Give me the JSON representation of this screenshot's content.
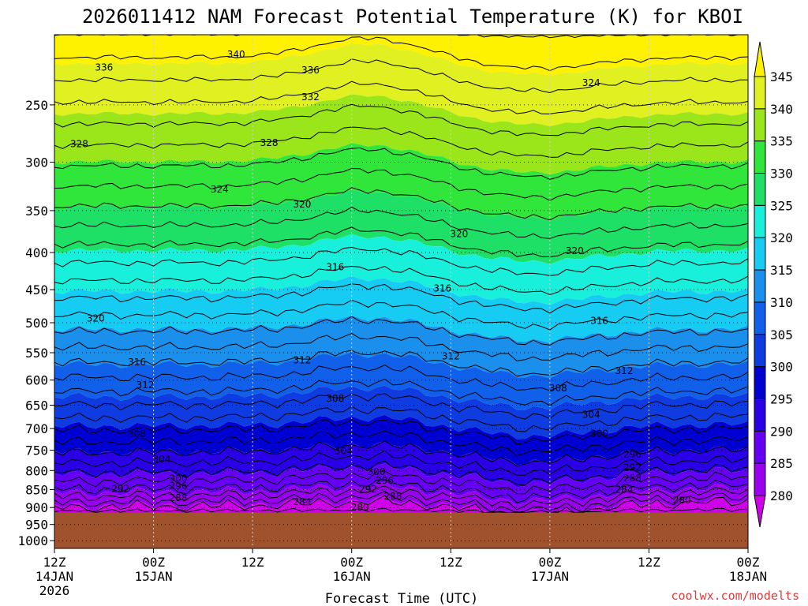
{
  "chart_data": {
    "type": "heatmap",
    "title": "2026011412 NAM Forecast Potential Temperature (K) for KBOI",
    "xlabel": "Forecast Time (UTC)",
    "ylabel": "",
    "credit": "coolwx.com/modelts",
    "y_axis": {
      "scale": "log",
      "range_hpa": [
        1025,
        200
      ],
      "ticks": [
        {
          "value": 250,
          "label": "250"
        },
        {
          "value": 300,
          "label": "300"
        },
        {
          "value": 350,
          "label": "350"
        },
        {
          "value": 400,
          "label": "400"
        },
        {
          "value": 450,
          "label": "450"
        },
        {
          "value": 500,
          "label": "500"
        },
        {
          "value": 550,
          "label": "550"
        },
        {
          "value": 600,
          "label": "600"
        },
        {
          "value": 650,
          "label": "650"
        },
        {
          "value": 700,
          "label": "700"
        },
        {
          "value": 750,
          "label": "750"
        },
        {
          "value": 800,
          "label": "800"
        },
        {
          "value": 850,
          "label": "850"
        },
        {
          "value": 900,
          "label": "900"
        },
        {
          "value": 950,
          "label": "950"
        },
        {
          "value": 1000,
          "label": "1000"
        }
      ]
    },
    "x_axis": {
      "range_hours": [
        0,
        84
      ],
      "ticks": [
        {
          "hour": 0,
          "line1": "12Z",
          "line2": "14JAN",
          "line3": "2026"
        },
        {
          "hour": 12,
          "line1": "00Z",
          "line2": "15JAN",
          "line3": ""
        },
        {
          "hour": 24,
          "line1": "12Z",
          "line2": "",
          "line3": ""
        },
        {
          "hour": 36,
          "line1": "00Z",
          "line2": "16JAN",
          "line3": ""
        },
        {
          "hour": 48,
          "line1": "12Z",
          "line2": "",
          "line3": ""
        },
        {
          "hour": 60,
          "line1": "00Z",
          "line2": "17JAN",
          "line3": ""
        },
        {
          "hour": 72,
          "line1": "12Z",
          "line2": "",
          "line3": ""
        },
        {
          "hour": 84,
          "line1": "00Z",
          "line2": "18JAN",
          "line3": ""
        }
      ]
    },
    "colorbar": {
      "levels": [
        280,
        285,
        290,
        295,
        300,
        305,
        310,
        315,
        320,
        325,
        330,
        335,
        340,
        345
      ],
      "colors": [
        "#d000ea",
        "#9a00f0",
        "#6600f5",
        "#2a00e6",
        "#0000d2",
        "#0e3ce0",
        "#1060ea",
        "#1a90ec",
        "#16ccf2",
        "#18f0dc",
        "#1ee066",
        "#30e63a",
        "#9ae61a",
        "#e0f020",
        "#fff200"
      ],
      "labels": [
        "280",
        "285",
        "290",
        "295",
        "300",
        "305",
        "310",
        "315",
        "320",
        "325",
        "330",
        "335",
        "340",
        "345"
      ]
    },
    "surface_color": "#a0522d",
    "surface_pressure_hpa": 915,
    "contour_labels": [
      {
        "text": "340",
        "hour": 22,
        "p": 213
      },
      {
        "text": "336",
        "hour": 6,
        "p": 222
      },
      {
        "text": "336",
        "hour": 31,
        "p": 224
      },
      {
        "text": "332",
        "hour": 31,
        "p": 244
      },
      {
        "text": "324",
        "hour": 65,
        "p": 233
      },
      {
        "text": "328",
        "hour": 3,
        "p": 283
      },
      {
        "text": "328",
        "hour": 26,
        "p": 282
      },
      {
        "text": "324",
        "hour": 20,
        "p": 327
      },
      {
        "text": "320",
        "hour": 30,
        "p": 343
      },
      {
        "text": "320",
        "hour": 49,
        "p": 377
      },
      {
        "text": "320",
        "hour": 63,
        "p": 398
      },
      {
        "text": "316",
        "hour": 34,
        "p": 419
      },
      {
        "text": "316",
        "hour": 47,
        "p": 448
      },
      {
        "text": "320",
        "hour": 5,
        "p": 493
      },
      {
        "text": "316",
        "hour": 66,
        "p": 497
      },
      {
        "text": "316",
        "hour": 10,
        "p": 567
      },
      {
        "text": "312",
        "hour": 30,
        "p": 563
      },
      {
        "text": "312",
        "hour": 48,
        "p": 556
      },
      {
        "text": "312",
        "hour": 69,
        "p": 583
      },
      {
        "text": "312",
        "hour": 11,
        "p": 610
      },
      {
        "text": "308",
        "hour": 34,
        "p": 636
      },
      {
        "text": "308",
        "hour": 61,
        "p": 616
      },
      {
        "text": "304",
        "hour": 65,
        "p": 670
      },
      {
        "text": "308",
        "hour": 10,
        "p": 712
      },
      {
        "text": "300",
        "hour": 66,
        "p": 711
      },
      {
        "text": "304",
        "hour": 35,
        "p": 752
      },
      {
        "text": "304",
        "hour": 13,
        "p": 772
      },
      {
        "text": "296",
        "hour": 70,
        "p": 760
      },
      {
        "text": "300",
        "hour": 39,
        "p": 803
      },
      {
        "text": "292",
        "hour": 70,
        "p": 792
      },
      {
        "text": "300",
        "hour": 15,
        "p": 821
      },
      {
        "text": "296",
        "hour": 40,
        "p": 826
      },
      {
        "text": "288",
        "hour": 70,
        "p": 820
      },
      {
        "text": "292",
        "hour": 8,
        "p": 848
      },
      {
        "text": "296",
        "hour": 15,
        "p": 841
      },
      {
        "text": "292",
        "hour": 38,
        "p": 849
      },
      {
        "text": "284",
        "hour": 69,
        "p": 850
      },
      {
        "text": "288",
        "hour": 41,
        "p": 869
      },
      {
        "text": "288",
        "hour": 15,
        "p": 873
      },
      {
        "text": "280",
        "hour": 76,
        "p": 880
      },
      {
        "text": "284",
        "hour": 30,
        "p": 884
      },
      {
        "text": "280",
        "hour": 37,
        "p": 900
      }
    ]
  }
}
